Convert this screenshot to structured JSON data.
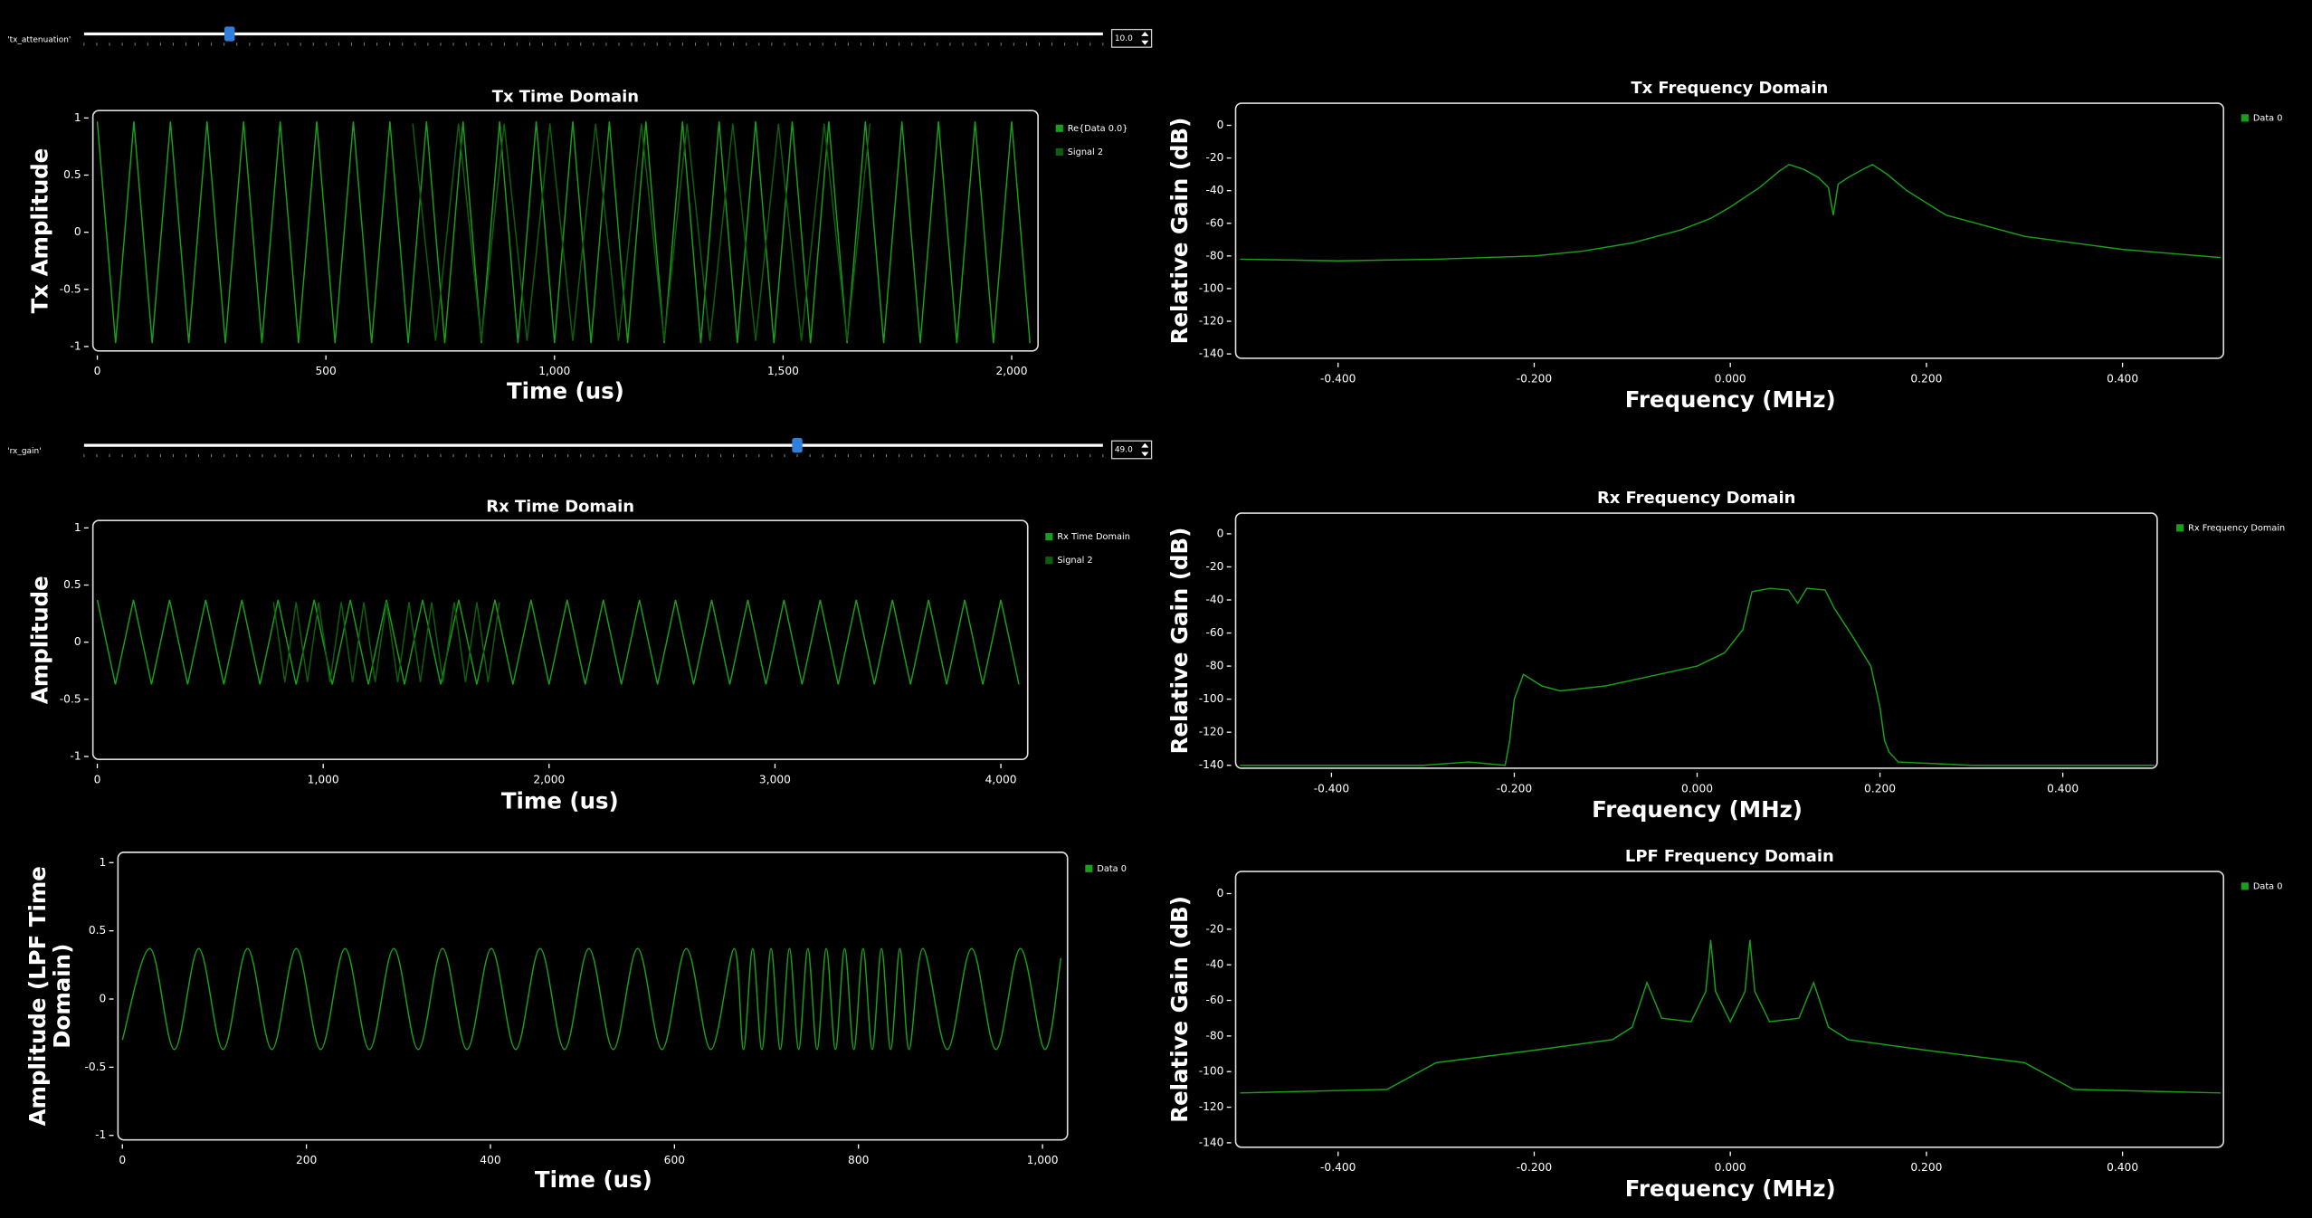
{
  "controls": [
    {
      "label": "'tx_attenuation'",
      "value": 10,
      "value_label": "10.0",
      "range": [
        0,
        70
      ]
    },
    {
      "label": "'rx_gain'",
      "value": 49,
      "value_label": "49.0",
      "range": [
        0,
        70
      ]
    }
  ],
  "chart_data": [
    {
      "type": "line",
      "title": "Tx Time Domain",
      "xlabel": "Time (us)",
      "ylabel": "Tx Amplitude",
      "xlim": [
        0,
        2048
      ],
      "ylim": [
        -1,
        1
      ],
      "xticks": [
        0,
        500,
        {
          "value": 1000,
          "label": "1,000"
        },
        {
          "value": 1500,
          "label": "1,500"
        },
        {
          "value": 2000,
          "label": "2,000"
        }
      ],
      "yticks": [
        1,
        0.5,
        0,
        -0.5,
        -1
      ],
      "series": [
        {
          "name": "Re{Data 0.0}",
          "color": "#1a9f1a",
          "x": [
            0,
            40,
            80,
            120,
            160,
            200,
            240,
            280,
            320,
            360,
            400,
            440,
            480,
            520,
            560,
            600,
            640,
            680,
            720,
            760,
            800,
            840,
            880,
            920,
            960,
            1000,
            1040,
            1080,
            1120,
            1160,
            1200,
            1240,
            1280,
            1320,
            1360,
            1400,
            1440,
            1480,
            1520,
            1560,
            1600,
            1640,
            1680,
            1720,
            1760,
            1800,
            1840,
            1880,
            1920,
            1960,
            2000,
            2040
          ],
          "values": [
            0.97,
            -0.97,
            0.97,
            -0.97,
            0.97,
            -0.97,
            0.97,
            -0.97,
            0.97,
            -0.97,
            0.97,
            -0.97,
            0.97,
            -0.97,
            0.97,
            -0.97,
            0.97,
            -0.97,
            0.97,
            -0.97,
            0.97,
            -0.97,
            0.97,
            -0.97,
            0.97,
            -0.97,
            0.97,
            -0.97,
            0.97,
            -0.97,
            0.97,
            -0.97,
            0.97,
            -0.97,
            0.97,
            -0.97,
            0.97,
            -0.97,
            0.97,
            -0.97,
            0.97,
            -0.97,
            0.97,
            -0.97,
            0.97,
            -0.97,
            0.97,
            -0.97,
            0.97,
            -0.97,
            0.97,
            -0.97
          ]
        },
        {
          "name": "Signal 2",
          "color": "#0d5f0d",
          "x": [
            690,
            740,
            790,
            840,
            890,
            940,
            990,
            1040,
            1090,
            1140,
            1190,
            1240,
            1290,
            1340,
            1390,
            1440,
            1490,
            1540,
            1590,
            1640,
            1690
          ],
          "values": [
            0.95,
            -0.95,
            0.95,
            -0.95,
            0.95,
            -0.95,
            0.95,
            -0.95,
            0.95,
            -0.95,
            0.95,
            -0.95,
            0.95,
            -0.95,
            0.95,
            -0.95,
            0.95,
            -0.95,
            0.95,
            -0.95,
            0.95
          ]
        }
      ]
    },
    {
      "type": "line",
      "title": "Tx Frequency Domain",
      "xlabel": "Frequency (MHz)",
      "ylabel": "Relative Gain (dB)",
      "xlim": [
        -0.5,
        0.5
      ],
      "ylim": [
        -140,
        0
      ],
      "xticks": [
        {
          "value": -0.4,
          "label": "-0.400"
        },
        {
          "value": -0.2,
          "label": "-0.200"
        },
        {
          "value": 0,
          "label": "0.000"
        },
        {
          "value": 0.2,
          "label": "0.200"
        },
        {
          "value": 0.4,
          "label": "0.400"
        }
      ],
      "yticks": [
        0,
        -20,
        -40,
        -60,
        -80,
        -100,
        -120,
        -140
      ],
      "series": [
        {
          "name": "Data 0",
          "color": "#1a9f1a",
          "x": [
            -0.5,
            -0.4,
            -0.3,
            -0.2,
            -0.15,
            -0.1,
            -0.05,
            -0.02,
            0,
            0.03,
            0.05,
            0.06,
            0.075,
            0.09,
            0.1,
            0.105,
            0.11,
            0.12,
            0.135,
            0.145,
            0.16,
            0.18,
            0.22,
            0.3,
            0.4,
            0.5
          ],
          "values": [
            -82,
            -83,
            -82,
            -80,
            -77,
            -72,
            -64,
            -57,
            -50,
            -38,
            -28,
            -24,
            -27,
            -32,
            -38,
            -55,
            -36,
            -32,
            -27,
            -24,
            -30,
            -40,
            -55,
            -68,
            -76,
            -81
          ]
        }
      ]
    },
    {
      "type": "line",
      "title": "Rx Time Domain",
      "xlabel": "Time (us)",
      "ylabel": "Amplitude",
      "xlim": [
        0,
        4096
      ],
      "ylim": [
        -1,
        1
      ],
      "xticks": [
        0,
        {
          "value": 1000,
          "label": "1,000"
        },
        {
          "value": 2000,
          "label": "2,000"
        },
        {
          "value": 3000,
          "label": "3,000"
        },
        {
          "value": 4000,
          "label": "4,000"
        }
      ],
      "yticks": [
        1,
        0.5,
        0,
        -0.5,
        -1
      ],
      "series": [
        {
          "name": "Rx Time Domain",
          "color": "#1a9f1a",
          "x": [
            0,
            80,
            160,
            240,
            320,
            400,
            480,
            560,
            640,
            720,
            800,
            880,
            960,
            1040,
            1120,
            1200,
            1280,
            1360,
            1440,
            1520,
            1600,
            1680,
            1760,
            1840,
            1920,
            2000,
            2080,
            2160,
            2240,
            2320,
            2400,
            2480,
            2560,
            2640,
            2720,
            2800,
            2880,
            2960,
            3040,
            3120,
            3200,
            3280,
            3360,
            3440,
            3520,
            3600,
            3680,
            3760,
            3840,
            3920,
            4000,
            4080
          ],
          "values": [
            0.37,
            -0.37,
            0.37,
            -0.37,
            0.37,
            -0.37,
            0.37,
            -0.37,
            0.37,
            -0.37,
            0.37,
            -0.37,
            0.37,
            -0.37,
            0.37,
            -0.37,
            0.37,
            -0.37,
            0.37,
            -0.37,
            0.37,
            -0.37,
            0.37,
            -0.37,
            0.37,
            -0.37,
            0.37,
            -0.37,
            0.37,
            -0.37,
            0.37,
            -0.37,
            0.37,
            -0.37,
            0.37,
            -0.37,
            0.37,
            -0.37,
            0.37,
            -0.37,
            0.37,
            -0.37,
            0.37,
            -0.37,
            0.37,
            -0.37,
            0.37,
            -0.37,
            0.37,
            -0.37,
            0.37,
            -0.37
          ]
        },
        {
          "name": "Signal 2",
          "color": "#0d5f0d",
          "x": [
            780,
            830,
            880,
            930,
            980,
            1030,
            1080,
            1130,
            1180,
            1230,
            1280,
            1330,
            1380,
            1430,
            1480,
            1530,
            1580,
            1630,
            1680,
            1730,
            1780
          ],
          "values": [
            0.35,
            -0.35,
            0.35,
            -0.35,
            0.35,
            -0.35,
            0.35,
            -0.35,
            0.35,
            -0.35,
            0.35,
            -0.35,
            0.35,
            -0.35,
            0.35,
            -0.35,
            0.35,
            -0.35,
            0.35,
            -0.35,
            0.35
          ]
        }
      ]
    },
    {
      "type": "line",
      "title": "Rx Frequency Domain",
      "xlabel": "Frequency (MHz)",
      "ylabel": "Relative Gain (dB)",
      "xlim": [
        -0.5,
        0.5
      ],
      "ylim": [
        -140,
        0
      ],
      "xticks": [
        {
          "value": -0.4,
          "label": "-0.400"
        },
        {
          "value": -0.2,
          "label": "-0.200"
        },
        {
          "value": 0,
          "label": "0.000"
        },
        {
          "value": 0.2,
          "label": "0.200"
        },
        {
          "value": 0.4,
          "label": "0.400"
        }
      ],
      "yticks": [
        0,
        -20,
        -40,
        -60,
        -80,
        -100,
        -120,
        -140
      ],
      "series": [
        {
          "name": "Rx Frequency Domain",
          "color": "#1a9f1a",
          "x": [
            -0.5,
            -0.3,
            -0.25,
            -0.21,
            -0.205,
            -0.2,
            -0.19,
            -0.17,
            -0.15,
            -0.1,
            -0.05,
            0,
            0.03,
            0.05,
            0.06,
            0.08,
            0.1,
            0.11,
            0.12,
            0.14,
            0.15,
            0.17,
            0.19,
            0.2,
            0.205,
            0.21,
            0.22,
            0.3,
            0.5
          ],
          "values": [
            -140,
            -140,
            -138,
            -140,
            -125,
            -100,
            -85,
            -92,
            -95,
            -92,
            -86,
            -80,
            -72,
            -58,
            -35,
            -33,
            -34,
            -42,
            -33,
            -34,
            -45,
            -62,
            -80,
            -105,
            -125,
            -132,
            -138,
            -140,
            -140
          ]
        }
      ]
    },
    {
      "type": "line",
      "xlabel": "Time (us)",
      "ylabel": "Amplitude (LPF Time Domain)",
      "xlim": [
        0,
        1024
      ],
      "ylim": [
        -1,
        1
      ],
      "xticks": [
        0,
        200,
        400,
        600,
        800,
        {
          "value": 1000,
          "label": "1,000"
        }
      ],
      "yticks": [
        1,
        0.5,
        0,
        -0.5,
        -1
      ],
      "series": [
        {
          "name": "Data 0",
          "color": "#1a9f1a",
          "x": [
            0,
            30,
            56.5,
            83,
            109.5,
            136,
            162.5,
            189,
            215.5,
            242,
            268.5,
            295,
            321.5,
            348,
            374.5,
            401,
            427.5,
            454,
            480.5,
            507,
            533.5,
            560,
            586.5,
            613,
            639.5,
            665,
            675,
            685,
            695,
            705,
            715,
            725,
            735,
            745,
            755,
            765,
            775,
            785,
            795,
            805,
            815,
            825,
            835,
            845,
            855,
            870,
            896.5,
            923,
            949.5,
            976,
            1002.5,
            1020
          ],
          "values": [
            -0.3,
            0.37,
            -0.37,
            0.37,
            -0.37,
            0.37,
            -0.37,
            0.37,
            -0.37,
            0.37,
            -0.37,
            0.37,
            -0.37,
            0.37,
            -0.37,
            0.37,
            -0.37,
            0.37,
            -0.37,
            0.37,
            -0.37,
            0.37,
            -0.37,
            0.37,
            -0.37,
            0.37,
            -0.37,
            0.37,
            -0.37,
            0.37,
            -0.37,
            0.37,
            -0.37,
            0.37,
            -0.37,
            0.37,
            -0.37,
            0.37,
            -0.37,
            0.37,
            -0.37,
            0.37,
            -0.37,
            0.37,
            -0.37,
            0.37,
            -0.37,
            0.37,
            -0.37,
            0.37,
            -0.37,
            0.3
          ]
        }
      ]
    },
    {
      "type": "line",
      "title": "LPF Frequency Domain",
      "xlabel": "Frequency (MHz)",
      "ylabel": "Relative Gain (dB)",
      "xlim": [
        -0.5,
        0.5
      ],
      "ylim": [
        -140,
        0
      ],
      "xticks": [
        {
          "value": -0.4,
          "label": "-0.400"
        },
        {
          "value": -0.2,
          "label": "-0.200"
        },
        {
          "value": 0,
          "label": "0.000"
        },
        {
          "value": 0.2,
          "label": "0.200"
        },
        {
          "value": 0.4,
          "label": "0.400"
        }
      ],
      "yticks": [
        0,
        -20,
        -40,
        -60,
        -80,
        -100,
        -120,
        -140
      ],
      "series": [
        {
          "name": "Data 0",
          "color": "#1a9f1a",
          "x": [
            -0.5,
            -0.35,
            -0.3,
            -0.2,
            -0.12,
            -0.1,
            -0.085,
            -0.07,
            -0.04,
            -0.025,
            -0.02,
            -0.015,
            0,
            0.015,
            0.02,
            0.025,
            0.04,
            0.07,
            0.085,
            0.1,
            0.12,
            0.2,
            0.3,
            0.35,
            0.5
          ],
          "values": [
            -112,
            -110,
            -95,
            -88,
            -82,
            -75,
            -50,
            -70,
            -72,
            -55,
            -26,
            -55,
            -72,
            -55,
            -26,
            -55,
            -72,
            -70,
            -50,
            -75,
            -82,
            -88,
            -95,
            -110,
            -112
          ]
        }
      ]
    }
  ]
}
